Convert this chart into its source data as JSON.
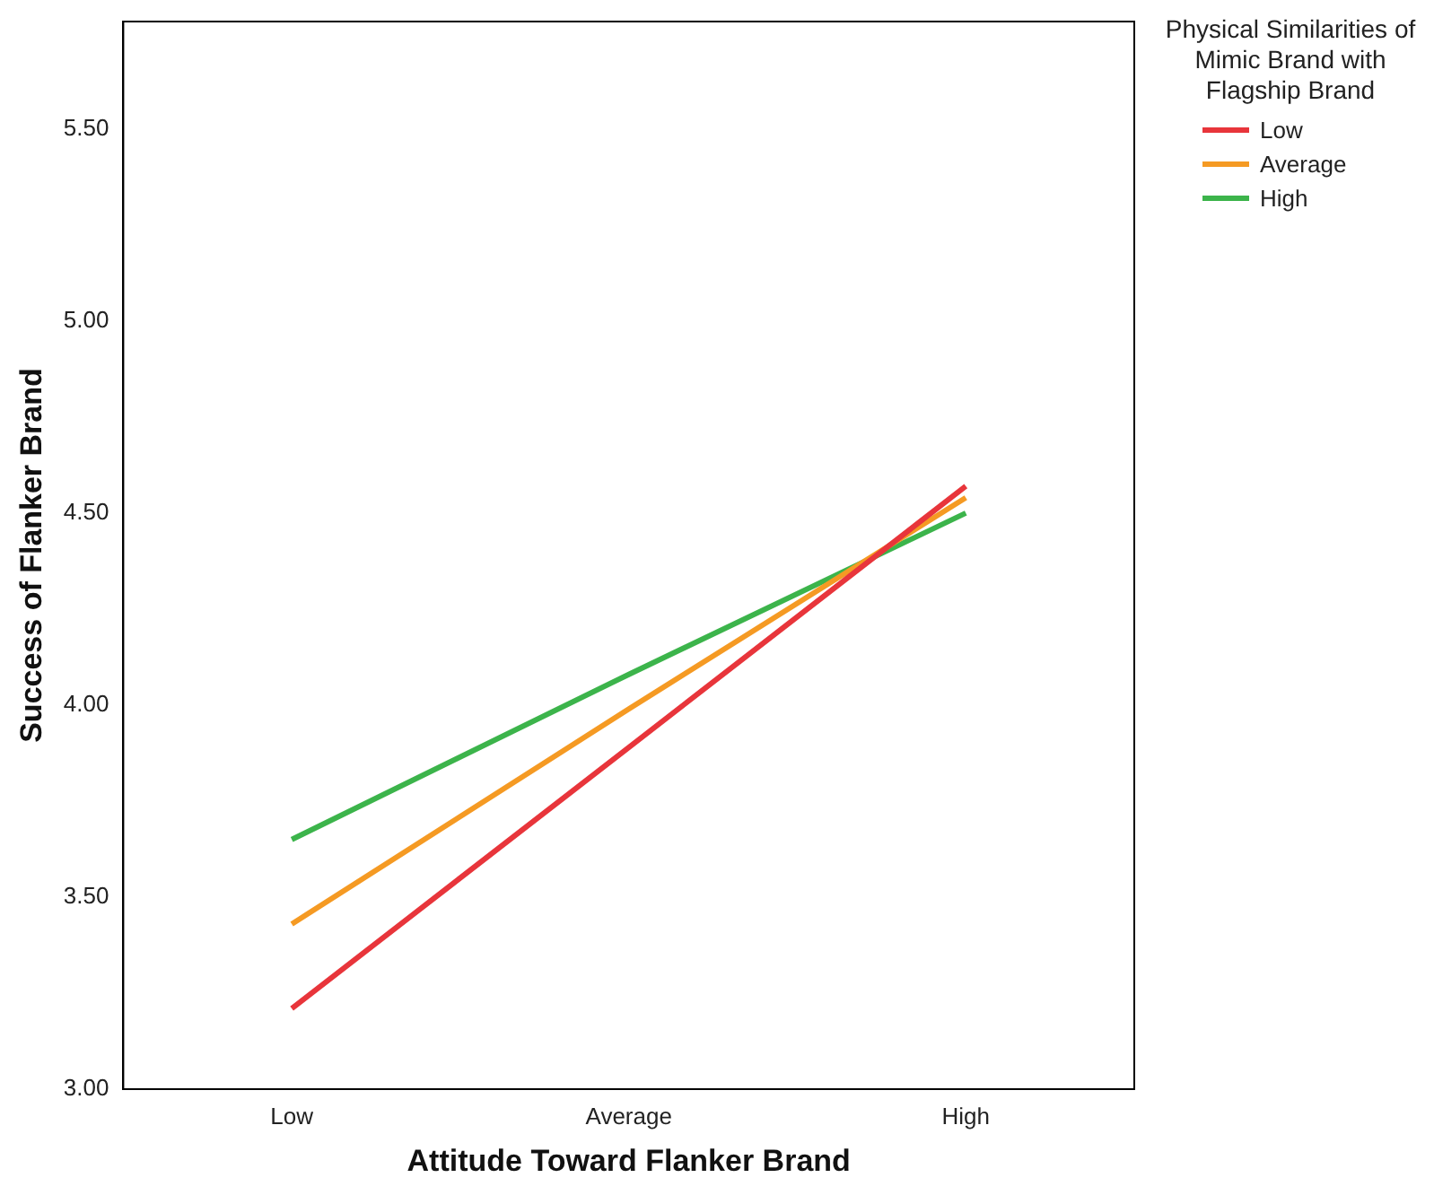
{
  "chart_data": {
    "type": "line",
    "xlabel": "Attitude Toward Flanker Brand",
    "ylabel": "Success of Flanker Brand",
    "legend_title": "Physical Similarities of Mimic Brand with Flagship Brand",
    "legend": "right",
    "grid": false,
    "marker": "none",
    "line_style": "solid",
    "categories": [
      "Low",
      "Average",
      "High"
    ],
    "ylim": [
      3,
      5.78
    ],
    "yticks": [
      {
        "value": 3,
        "label": "3.00"
      },
      {
        "value": 3.5,
        "label": "3.50"
      },
      {
        "value": 4,
        "label": "4.00"
      },
      {
        "value": 4.5,
        "label": "4.50"
      },
      {
        "value": 5,
        "label": "5.00"
      },
      {
        "value": 5.5,
        "label": "5.50"
      }
    ],
    "series": [
      {
        "name": "Low",
        "color": "#e8353b",
        "values": [
          3.21,
          3.89,
          4.57
        ]
      },
      {
        "name": "Average",
        "color": "#f59a23",
        "values": [
          3.43,
          3.99,
          4.54
        ]
      },
      {
        "name": "High",
        "color": "#3cb44b",
        "values": [
          3.65,
          4.08,
          4.5
        ]
      }
    ]
  }
}
